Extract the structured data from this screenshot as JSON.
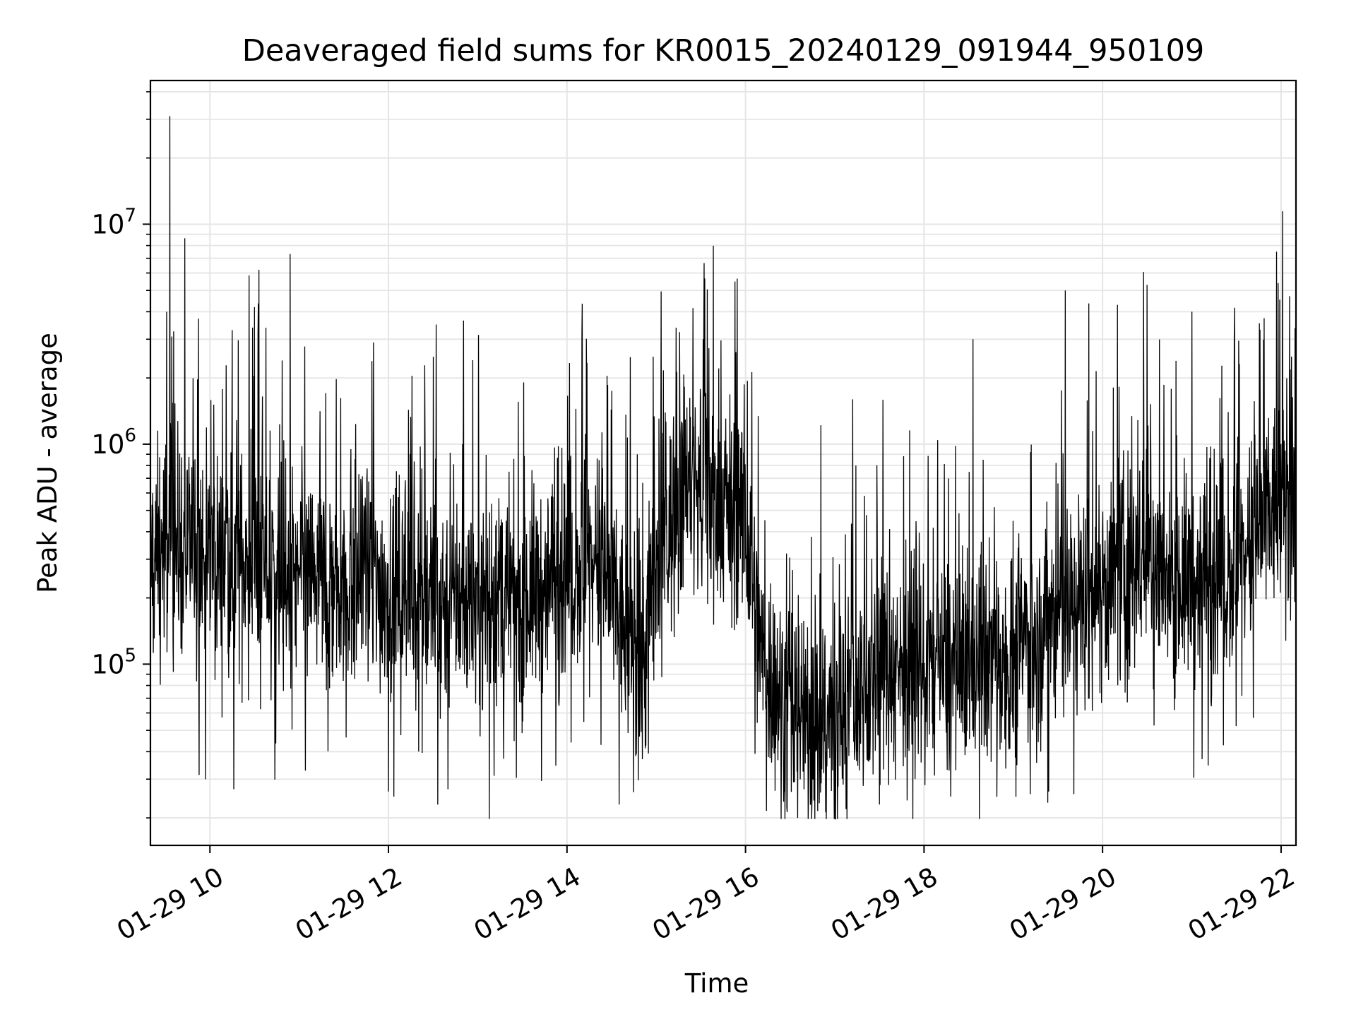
{
  "chart_data": {
    "type": "line",
    "title": "Deaveraged field sums for KR0015_20240129_091944_950109",
    "xlabel": "Time",
    "ylabel": "Peak ADU - average",
    "yscale": "log",
    "ylim": [
      15000,
      45000000
    ],
    "xlim": [
      "2024-01-29 09:20",
      "2024-01-29 22:10"
    ],
    "grid": true,
    "line_color": "#000000",
    "grid_color": "#e5e5e5",
    "x_ticks": [
      {
        "t": "2024-01-29 10:00",
        "label": "01-29 10"
      },
      {
        "t": "2024-01-29 12:00",
        "label": "01-29 12"
      },
      {
        "t": "2024-01-29 14:00",
        "label": "01-29 14"
      },
      {
        "t": "2024-01-29 16:00",
        "label": "01-29 16"
      },
      {
        "t": "2024-01-29 18:00",
        "label": "01-29 18"
      },
      {
        "t": "2024-01-29 20:00",
        "label": "01-29 20"
      },
      {
        "t": "2024-01-29 22:00",
        "label": "01-29 22"
      }
    ],
    "y_ticks": [
      {
        "value": 100000,
        "base": "10",
        "exp": "5"
      },
      {
        "value": 1000000,
        "base": "10",
        "exp": "6"
      },
      {
        "value": 10000000,
        "base": "10",
        "exp": "7"
      }
    ],
    "series": [
      {
        "x": [
          "2024-01-29 09:20",
          "2024-01-29 09:30",
          "2024-01-29 09:40",
          "2024-01-29 10:00",
          "2024-01-29 10:30",
          "2024-01-29 11:00",
          "2024-01-29 11:30",
          "2024-01-29 12:00",
          "2024-01-29 12:30",
          "2024-01-29 13:00",
          "2024-01-29 13:30",
          "2024-01-29 14:00",
          "2024-01-29 14:20",
          "2024-01-29 14:40",
          "2024-01-29 14:50",
          "2024-01-29 15:00",
          "2024-01-29 15:20",
          "2024-01-29 15:40",
          "2024-01-29 16:00",
          "2024-01-29 16:10",
          "2024-01-29 16:30",
          "2024-01-29 16:50",
          "2024-01-29 17:10",
          "2024-01-29 17:30",
          "2024-01-29 18:00",
          "2024-01-29 18:30",
          "2024-01-29 19:00",
          "2024-01-29 19:30",
          "2024-01-29 20:00",
          "2024-01-29 20:30",
          "2024-01-29 21:00",
          "2024-01-29 21:30",
          "2024-01-29 22:00",
          "2024-01-29 22:10"
        ],
        "y": [
          300000,
          350000,
          330000,
          300000,
          280000,
          250000,
          240000,
          220000,
          200000,
          190000,
          200000,
          260000,
          300000,
          130000,
          90000,
          280000,
          650000,
          600000,
          450000,
          110000,
          60000,
          60000,
          65000,
          105000,
          95000,
          100000,
          120000,
          170000,
          230000,
          300000,
          230000,
          270000,
          550000,
          500000
        ]
      }
    ],
    "spikes": [
      {
        "t": "2024-01-29 09:33",
        "peak": 31000000
      },
      {
        "t": "2024-01-29 09:31",
        "peak": 4000000
      },
      {
        "t": "2024-01-29 10:30",
        "peak": 4200000
      },
      {
        "t": "2024-01-29 10:15",
        "peak": 3300000
      },
      {
        "t": "2024-01-29 11:50",
        "peak": 2900000
      },
      {
        "t": "2024-01-29 12:32",
        "peak": 3500000
      },
      {
        "t": "2024-01-29 14:35",
        "peak": 2500000
      },
      {
        "t": "2024-01-29 14:58",
        "peak": 2500000
      },
      {
        "t": "2024-01-29 17:12",
        "peak": 1600000
      },
      {
        "t": "2024-01-29 18:33",
        "peak": 3000000
      },
      {
        "t": "2024-01-29 19:35",
        "peak": 5000000
      },
      {
        "t": "2024-01-29 20:30",
        "peak": 5300000
      },
      {
        "t": "2024-01-29 20:10",
        "peak": 4300000
      },
      {
        "t": "2024-01-29 21:00",
        "peak": 4000000
      },
      {
        "t": "2024-01-29 21:57",
        "peak": 7500000
      }
    ],
    "dips": [
      {
        "t": "2024-01-29 10:16",
        "low": 27000
      },
      {
        "t": "2024-01-29 12:40",
        "low": 27000
      },
      {
        "t": "2024-01-29 14:35",
        "low": 23000
      },
      {
        "t": "2024-01-29 16:35",
        "low": 20000
      },
      {
        "t": "2024-01-29 17:30",
        "low": 23000
      },
      {
        "t": "2024-01-29 18:18",
        "low": 25000
      },
      {
        "t": "2024-01-29 21:07",
        "low": 37000
      }
    ]
  }
}
